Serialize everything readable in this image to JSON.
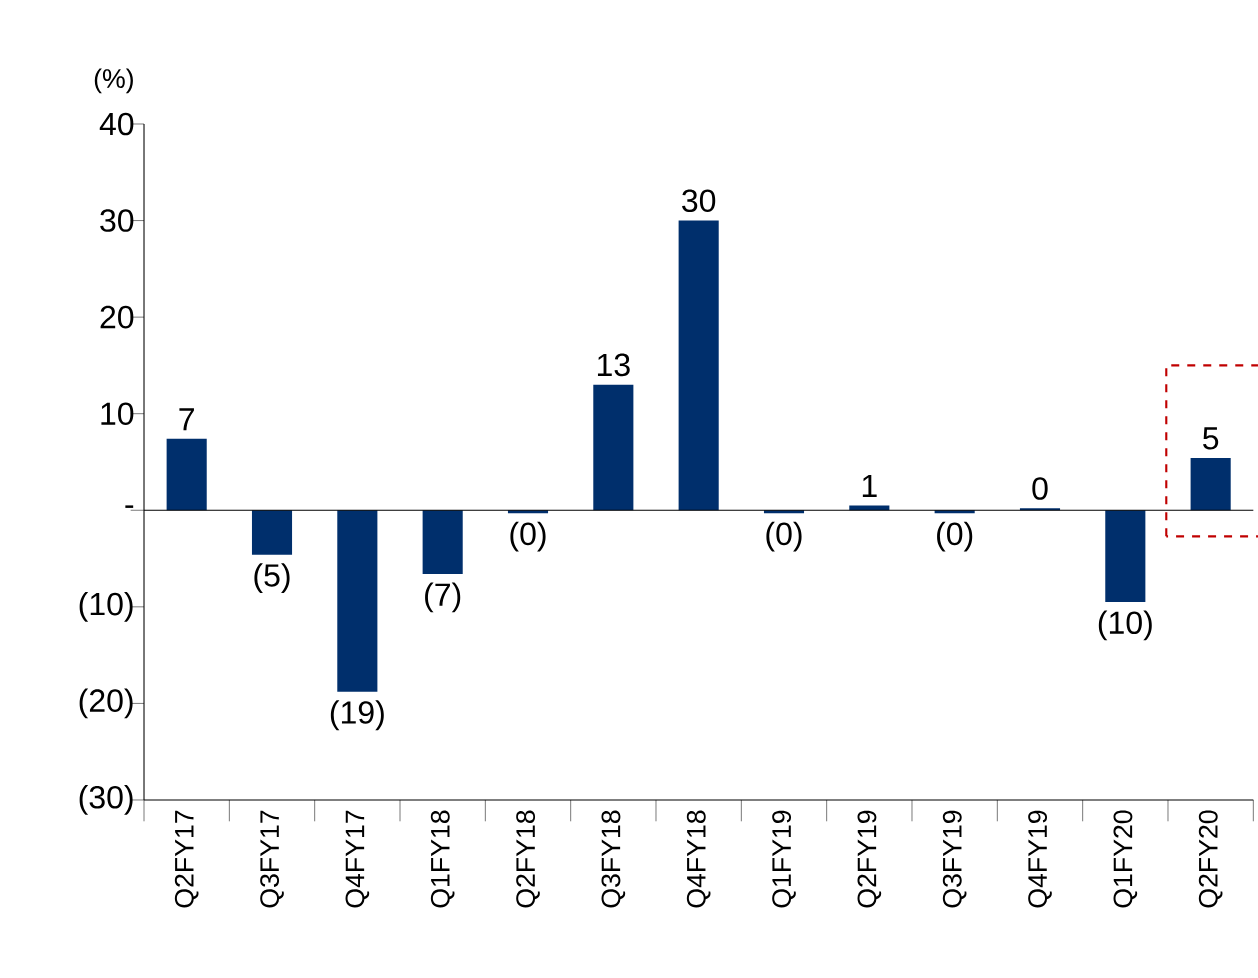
{
  "chart_data": {
    "type": "bar",
    "ylabel": "(%)",
    "categories": [
      "Q2FY17",
      "Q3FY17",
      "Q4FY17",
      "Q1FY18",
      "Q2FY18",
      "Q3FY18",
      "Q4FY18",
      "Q1FY19",
      "Q2FY19",
      "Q3FY19",
      "Q4FY19",
      "Q1FY20",
      "Q2FY20"
    ],
    "values": [
      7.4,
      -4.6,
      -18.8,
      -6.6,
      -0.3,
      13,
      30,
      -0.3,
      0.5,
      -0.3,
      0.2,
      -9.5,
      5.4
    ],
    "value_labels": [
      "7",
      "(5)",
      "(19)",
      "(7)",
      "(0)",
      "13",
      "30",
      "(0)",
      "1",
      "(0)",
      "0",
      "(10)",
      "5"
    ],
    "color": "#002f6c",
    "ylim": [
      -30,
      40
    ],
    "yticks": [
      {
        "value": -30,
        "label": "(30)"
      },
      {
        "value": -20,
        "label": "(20)"
      },
      {
        "value": -10,
        "label": "(10)"
      },
      {
        "value": 0,
        "label": "-"
      },
      10,
      20,
      30,
      40
    ]
  }
}
